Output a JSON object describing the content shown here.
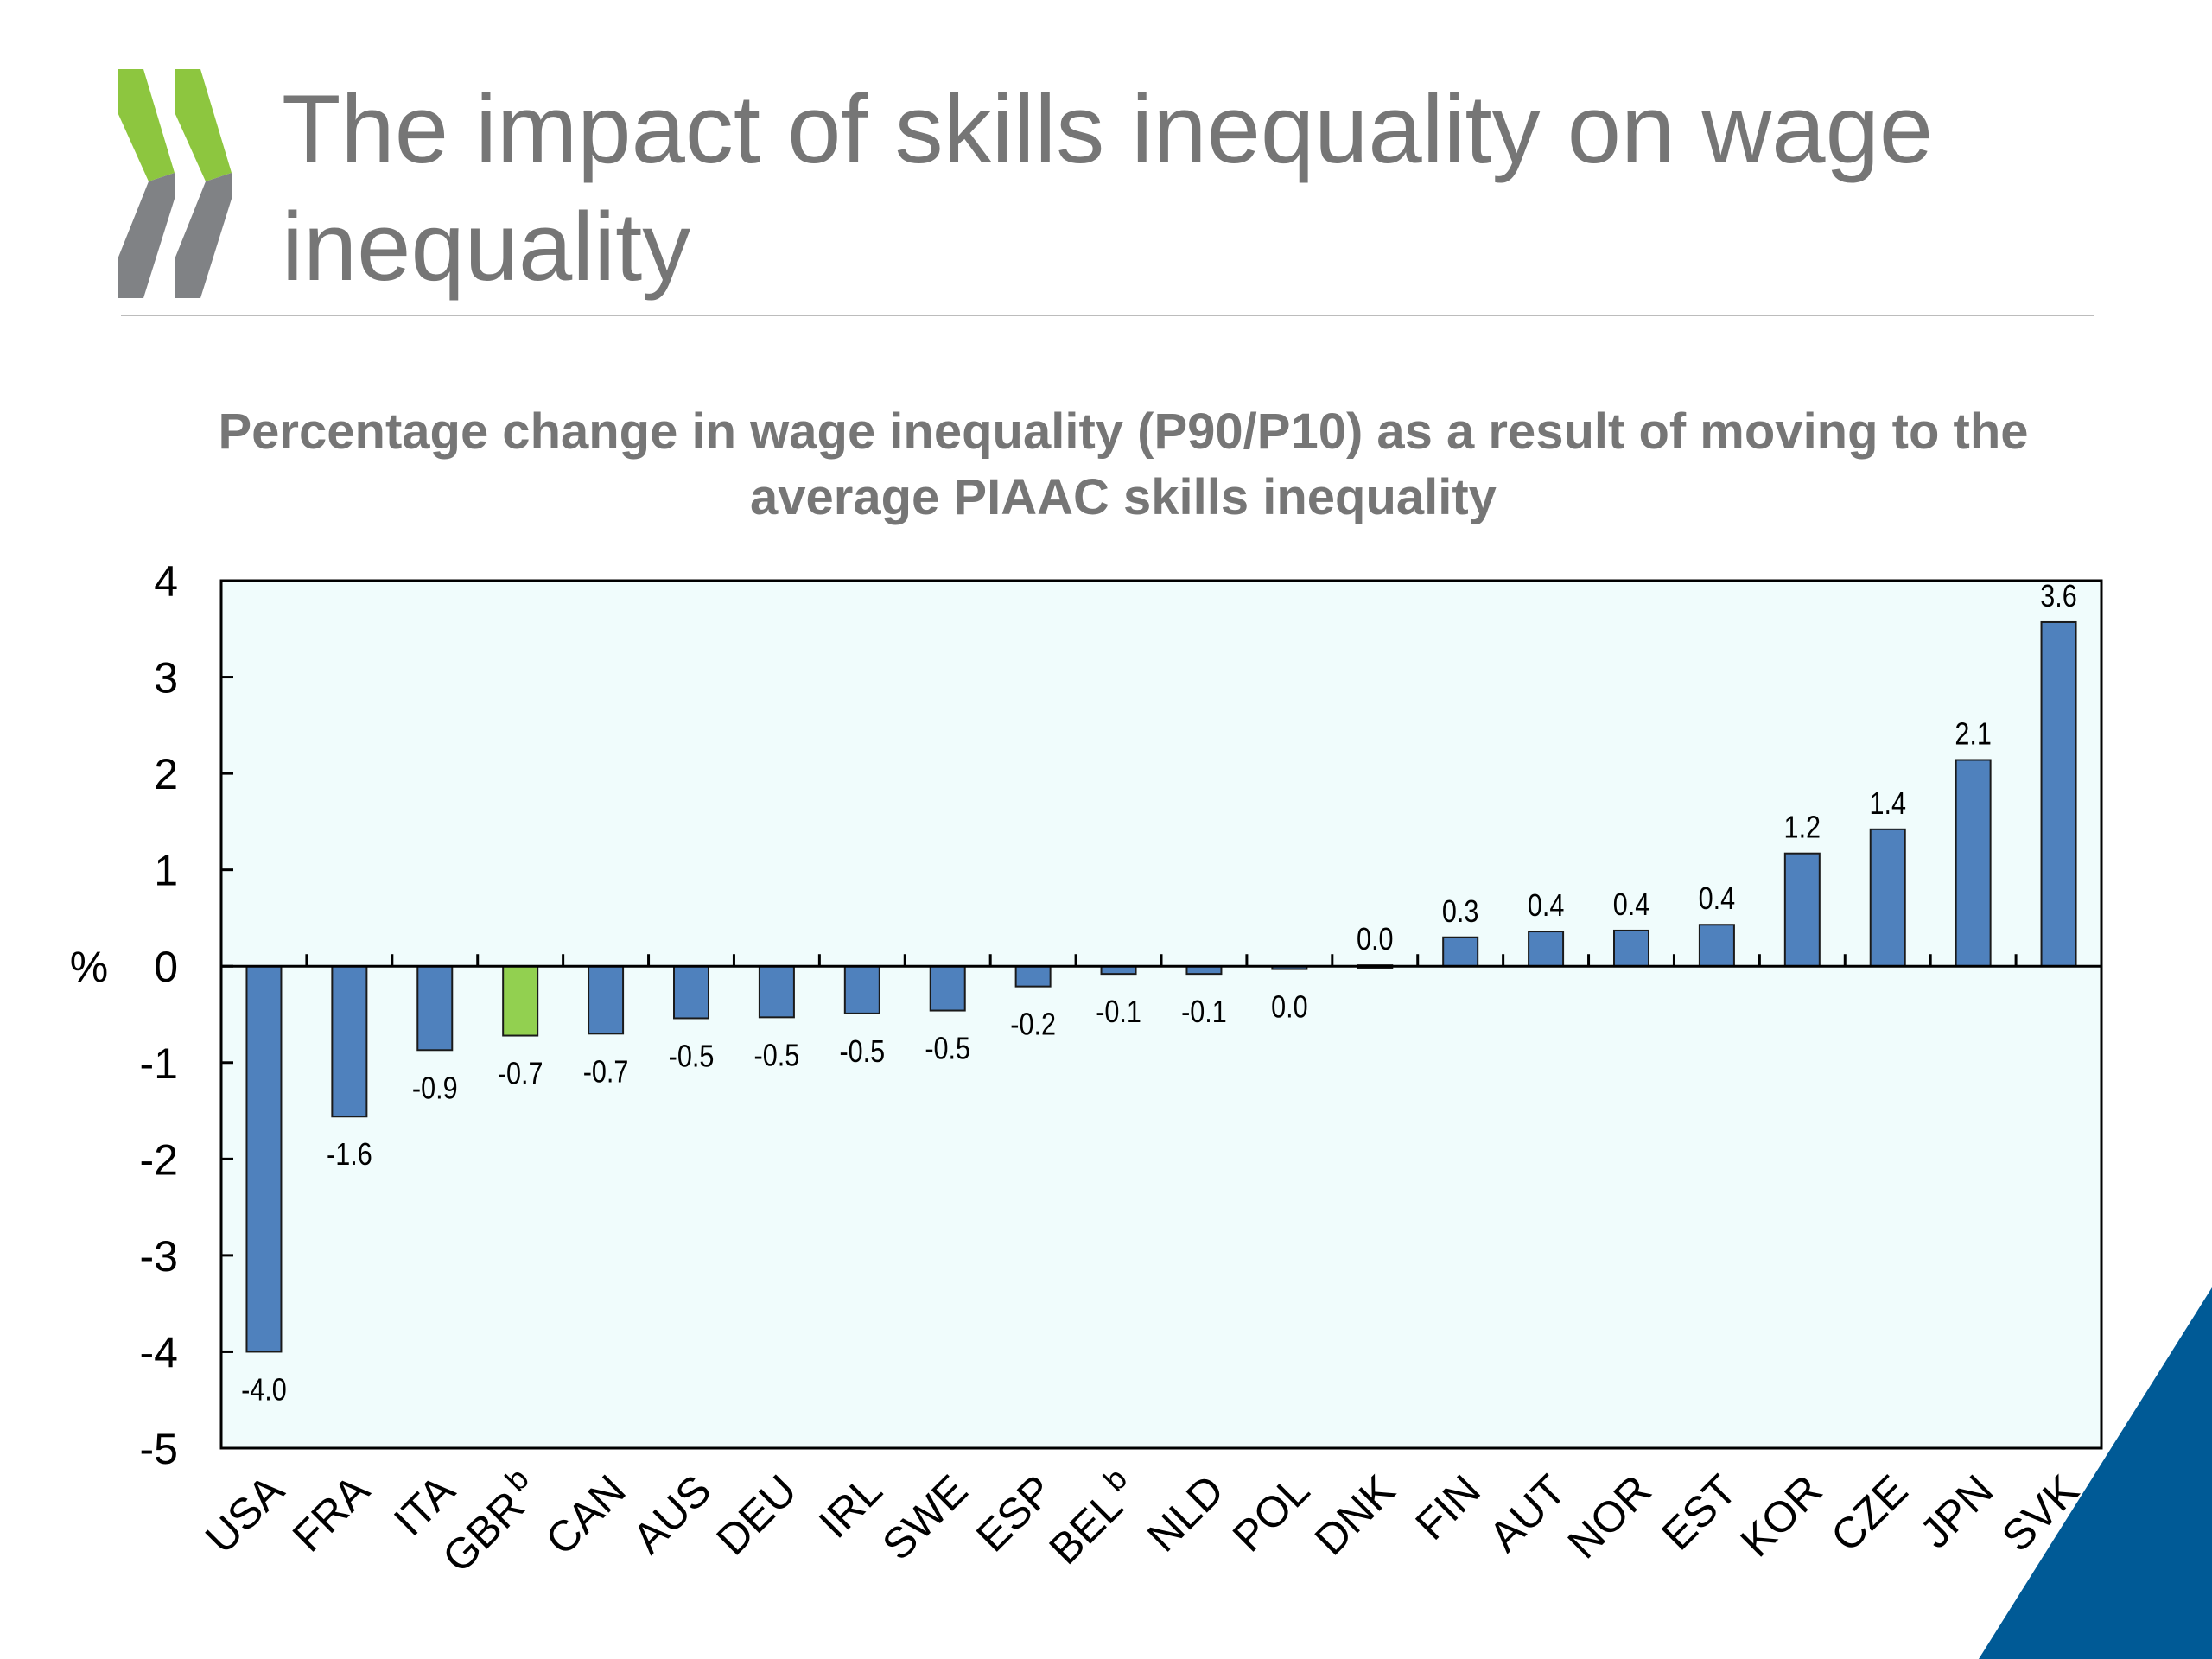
{
  "slide": {
    "title_line1": "The impact of skills inequality on wage",
    "title_line2": "inequality"
  },
  "colors": {
    "bar": "#4f81bd",
    "highlight": "#92d050",
    "plot_background": "#f0fcfc",
    "logo_green": "#8dc63f",
    "logo_grey": "#808285",
    "corner": "#005a96"
  },
  "chart_data": {
    "type": "bar",
    "title_line1": "Percentage change in wage inequality (P90/P10) as a result of moving to the",
    "title_line2": "average PIAAC skills inequality",
    "ylabel": "%",
    "ylim": [
      -5,
      4
    ],
    "yticks": [
      4,
      3,
      2,
      1,
      0,
      -1,
      -2,
      -3,
      -4,
      -5
    ],
    "grid": false,
    "categories": [
      "USA",
      "FRA",
      "ITA",
      "GBR",
      "CAN",
      "AUS",
      "DEU",
      "IRL",
      "SWE",
      "ESP",
      "BEL",
      "NLD",
      "POL",
      "DNK",
      "FIN",
      "AUT",
      "NOR",
      "EST",
      "KOR",
      "CZE",
      "JPN",
      "SVK"
    ],
    "category_superscripts": [
      "",
      "",
      "",
      "b",
      "",
      "",
      "",
      "",
      "",
      "",
      "b",
      "",
      "",
      "",
      "",
      "",
      "",
      "",
      "",
      "",
      "",
      ""
    ],
    "values": [
      -4.0,
      -1.56,
      -0.87,
      -0.72,
      -0.7,
      -0.54,
      -0.53,
      -0.49,
      -0.46,
      -0.21,
      -0.08,
      -0.08,
      -0.03,
      0.01,
      0.3,
      0.36,
      0.37,
      0.43,
      1.17,
      1.42,
      2.14,
      3.57
    ],
    "value_labels": [
      "-4.0",
      "-1.6",
      "-0.9",
      "-0.7",
      "-0.7",
      "-0.5",
      "-0.5",
      "-0.5",
      "-0.5",
      "-0.2",
      "-0.1",
      "-0.1",
      "0.0",
      "0.0",
      "0.3",
      "0.4",
      "0.4",
      "0.4",
      "1.2",
      "1.4",
      "2.1",
      "3.6"
    ],
    "highlight_category": "GBR"
  }
}
